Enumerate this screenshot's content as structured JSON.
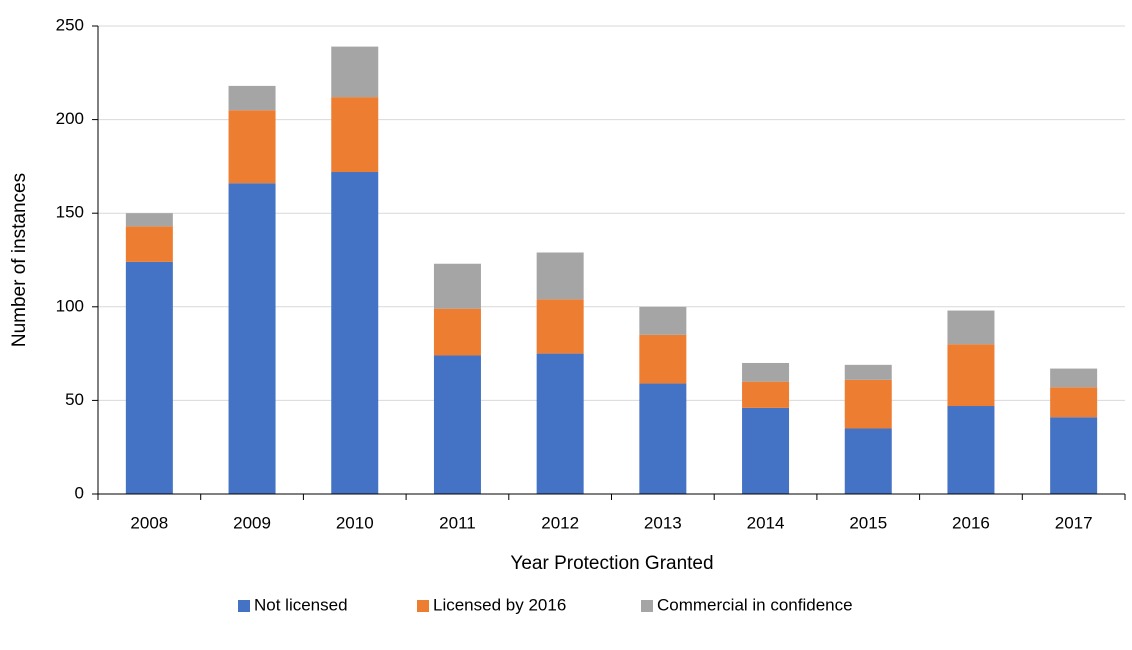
{
  "chart_data": {
    "type": "bar",
    "stacked": true,
    "x_label": "Year Protection Granted",
    "y_label": "Number of instances",
    "categories": [
      "2008",
      "2009",
      "2010",
      "2011",
      "2012",
      "2013",
      "2014",
      "2015",
      "2016",
      "2017"
    ],
    "series": [
      {
        "name": "Not licensed",
        "color": "#4472c4",
        "values": [
          124,
          166,
          172,
          74,
          75,
          59,
          46,
          35,
          47,
          41
        ]
      },
      {
        "name": "Licensed by 2016",
        "color": "#ed7d31",
        "values": [
          19,
          39,
          40,
          25,
          29,
          26,
          14,
          26,
          33,
          16
        ]
      },
      {
        "name": "Commercial in confidence",
        "color": "#a5a5a5",
        "values": [
          7,
          13,
          27,
          24,
          25,
          15,
          10,
          8,
          18,
          10
        ]
      }
    ],
    "ylim": [
      0,
      250
    ],
    "yticks": [
      0,
      50,
      100,
      150,
      200,
      250
    ],
    "grid": true,
    "legend": "bottom"
  }
}
